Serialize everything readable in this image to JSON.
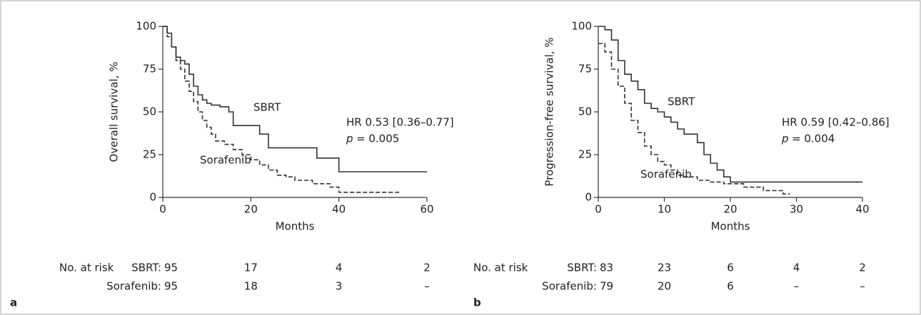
{
  "chart_data": [
    {
      "type": "line",
      "step": true,
      "panel_label": "a",
      "xlabel": "Months",
      "ylabel": "Overall survival, %",
      "xlim": [
        0,
        60
      ],
      "ylim": [
        0,
        100
      ],
      "xticks": [
        0,
        20,
        40,
        60
      ],
      "yticks": [
        0,
        25,
        50,
        75,
        100
      ],
      "series": [
        {
          "name": "SBRT",
          "color": "#333333",
          "line_style": "solid",
          "x": [
            0,
            1,
            2,
            3,
            4,
            5,
            6,
            7,
            8,
            9,
            10,
            11,
            13,
            15,
            16,
            17,
            20,
            22,
            24,
            35,
            40,
            60
          ],
          "values": [
            100,
            96,
            88,
            82,
            80,
            78,
            72,
            65,
            60,
            57,
            55,
            54,
            53,
            50,
            42,
            42,
            42,
            37,
            29,
            23,
            15,
            15
          ]
        },
        {
          "name": "Sorafenib",
          "color": "#333333",
          "line_style": "dashed",
          "x": [
            0,
            1,
            2,
            3,
            4,
            5,
            6,
            7,
            8,
            9,
            10,
            11,
            12,
            14,
            16,
            18,
            20,
            22,
            24,
            26,
            28,
            30,
            34,
            38,
            40,
            54
          ],
          "values": [
            100,
            94,
            88,
            80,
            75,
            68,
            62,
            56,
            50,
            45,
            41,
            37,
            33,
            31,
            28,
            25,
            22,
            19,
            16,
            13,
            12,
            10,
            8,
            6,
            3,
            3
          ]
        }
      ],
      "hr_text": "HR 0.53 [0.36–0.77]",
      "p_symbol": "p",
      "p_text": "= 0.005",
      "risk_table": {
        "title": "No. at risk",
        "rows": [
          {
            "label": "SBRT:",
            "values": [
              "95",
              "17",
              "4",
              "2"
            ]
          },
          {
            "label": "Sorafenib:",
            "values": [
              "95",
              "18",
              "3",
              "–"
            ]
          }
        ]
      }
    },
    {
      "type": "line",
      "step": true,
      "panel_label": "b",
      "xlabel": "Months",
      "ylabel": "Progression-free survival, %",
      "xlim": [
        0,
        40
      ],
      "ylim": [
        0,
        100
      ],
      "xticks": [
        0,
        10,
        20,
        30,
        40
      ],
      "yticks": [
        0,
        25,
        50,
        75,
        100
      ],
      "series": [
        {
          "name": "SBRT",
          "color": "#333333",
          "line_style": "solid",
          "x": [
            0,
            1,
            2,
            3,
            4,
            5,
            6,
            7,
            8,
            9,
            10,
            11,
            12,
            13,
            15,
            16,
            17,
            18,
            19,
            20,
            21,
            40
          ],
          "values": [
            100,
            98,
            92,
            80,
            72,
            68,
            63,
            55,
            52,
            50,
            47,
            44,
            40,
            37,
            32,
            25,
            20,
            16,
            12,
            9,
            9,
            9
          ]
        },
        {
          "name": "Sorafenib",
          "color": "#333333",
          "line_style": "dashed",
          "x": [
            0,
            1,
            2,
            3,
            4,
            5,
            6,
            7,
            8,
            9,
            10,
            11,
            12,
            13,
            15,
            17,
            19,
            22,
            25,
            28,
            29
          ],
          "values": [
            90,
            85,
            75,
            65,
            55,
            45,
            38,
            30,
            25,
            21,
            19,
            16,
            13,
            12,
            10,
            9,
            8,
            6,
            4,
            2,
            2
          ]
        }
      ],
      "hr_text": "HR 0.59 [0.42–0.86]",
      "p_symbol": "p",
      "p_text": "= 0.004",
      "risk_table": {
        "title": "No. at risk",
        "rows": [
          {
            "label": "SBRT:",
            "values": [
              "83",
              "23",
              "6",
              "4",
              "2"
            ]
          },
          {
            "label": "Sorafenib:",
            "values": [
              "79",
              "20",
              "6",
              "–",
              "–"
            ]
          }
        ]
      }
    }
  ]
}
